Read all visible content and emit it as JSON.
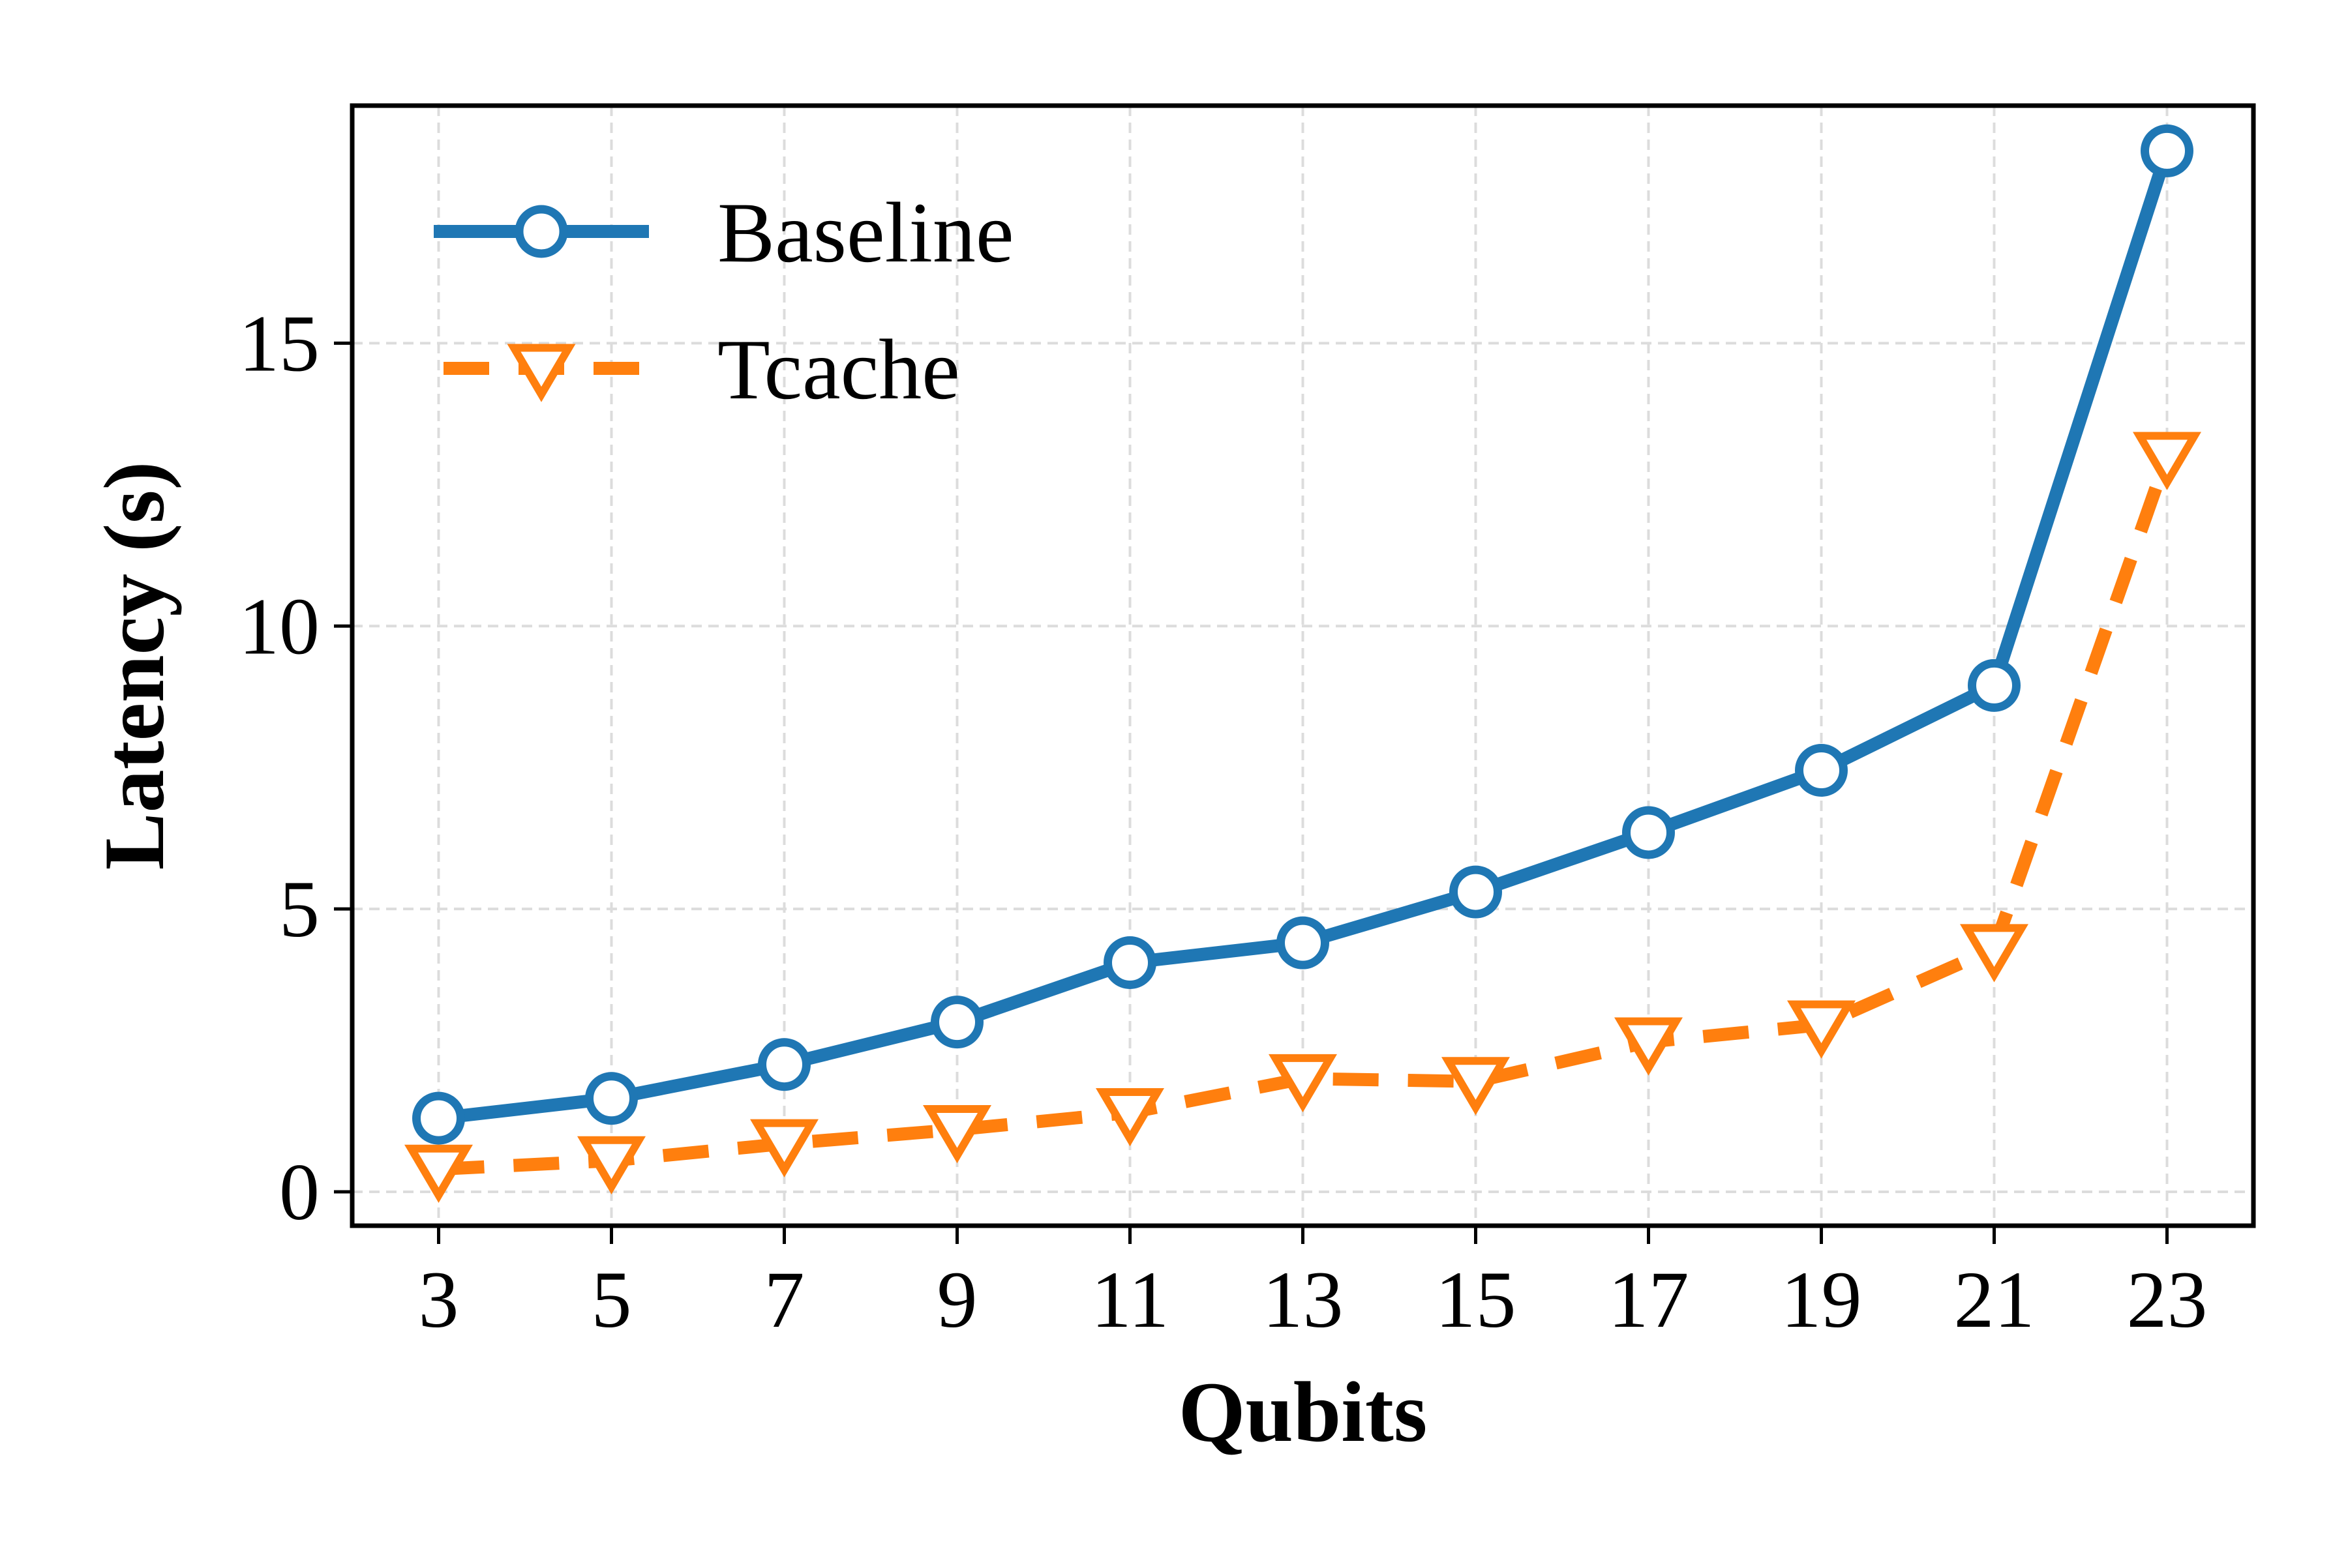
{
  "chart_data": {
    "type": "line",
    "xlabel": "Qubits",
    "ylabel": "Latency (s)",
    "x": [
      3,
      5,
      7,
      9,
      11,
      13,
      15,
      17,
      19,
      21,
      23
    ],
    "xticks": [
      "3",
      "5",
      "7",
      "9",
      "11",
      "13",
      "15",
      "17",
      "19",
      "21",
      "23"
    ],
    "yticks": [
      0,
      5,
      10,
      15
    ],
    "xlim": [
      2,
      24
    ],
    "ylim": [
      -0.6,
      19.2
    ],
    "grid": true,
    "legend_position": "top-left",
    "series": [
      {
        "name": "Baseline",
        "color": "#1f77b4",
        "line_style": "solid",
        "marker": "open-circle",
        "values": [
          1.3,
          1.65,
          2.25,
          3.0,
          4.05,
          4.4,
          5.3,
          6.35,
          7.45,
          8.95,
          18.4
        ]
      },
      {
        "name": "Tcache",
        "color": "#ff7f0e",
        "line_style": "dashed",
        "marker": "open-triangle-down",
        "values": [
          0.4,
          0.55,
          0.85,
          1.1,
          1.4,
          2.0,
          1.95,
          2.65,
          2.95,
          4.3,
          13.0
        ]
      }
    ]
  }
}
